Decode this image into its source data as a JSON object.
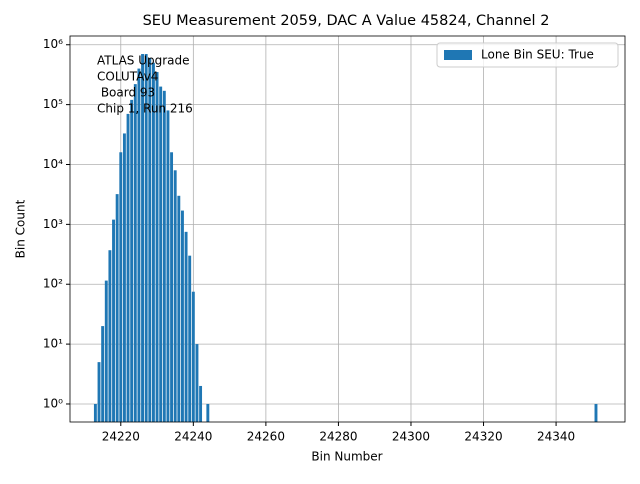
{
  "chart_data": {
    "type": "bar",
    "title": "SEU Measurement 2059, DAC A Value 45824, Channel 2",
    "xlabel": "Bin Number",
    "ylabel": "Bin Count",
    "x": [
      24213,
      24214,
      24215,
      24216,
      24217,
      24218,
      24219,
      24220,
      24221,
      24222,
      24223,
      24224,
      24225,
      24226,
      24227,
      24228,
      24229,
      24230,
      24231,
      24232,
      24233,
      24234,
      24235,
      24236,
      24237,
      24238,
      24239,
      24240,
      24241,
      24242,
      24244,
      24351
    ],
    "series": [
      {
        "name": "Lone Bin SEU: True",
        "color": "#1f77b4",
        "values": [
          1,
          5,
          20,
          115,
          370,
          1200,
          3200,
          16000,
          33000,
          70000,
          120000,
          220000,
          400000,
          700000,
          700000,
          600000,
          500000,
          350000,
          200000,
          170000,
          80000,
          16000,
          8000,
          3000,
          1700,
          750,
          300,
          75,
          10,
          2,
          1,
          1
        ]
      }
    ],
    "annotation": [
      "ATLAS Upgrade",
      "COLUTAv4",
      " Board 93",
      "Chip 1, Run 216"
    ],
    "xlim": [
      24206,
      24359
    ],
    "xticks": [
      24220,
      24240,
      24260,
      24280,
      24300,
      24320,
      24340
    ],
    "ylim": [
      0.5,
      1400000.0
    ],
    "log_y": true,
    "yticks": [
      {
        "value": 1,
        "label": "10⁰"
      },
      {
        "value": 10,
        "label": "10¹"
      },
      {
        "value": 100,
        "label": "10²"
      },
      {
        "value": 1000,
        "label": "10³"
      },
      {
        "value": 10000,
        "label": "10⁴"
      },
      {
        "value": 100000,
        "label": "10⁵"
      },
      {
        "value": 1000000,
        "label": "10⁶"
      }
    ],
    "grid": true,
    "legend": "upper right"
  }
}
